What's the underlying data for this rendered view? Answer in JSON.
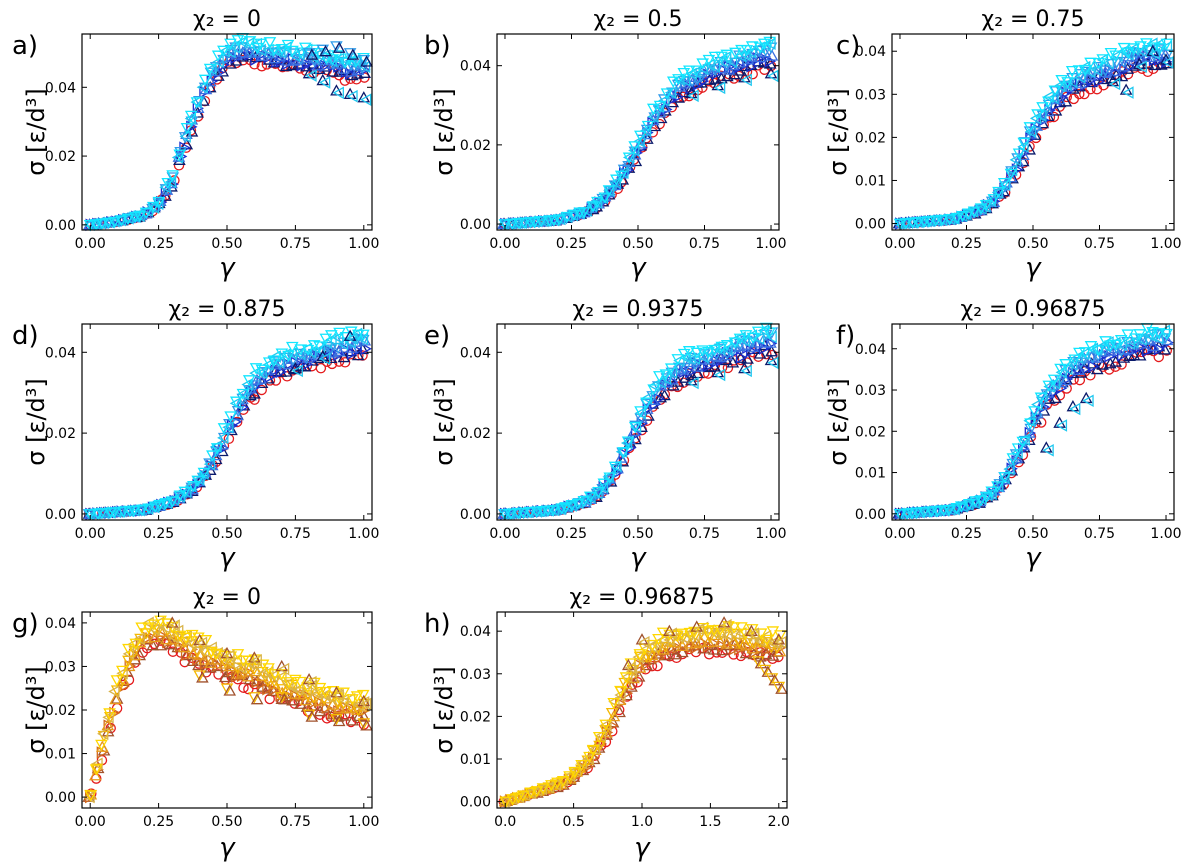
{
  "figure": {
    "xlabel": "γ",
    "ylabel": "σ [ε/d³]"
  },
  "chart_data": [
    {
      "panel": "a)",
      "title": "χ₂ = 0",
      "type": "scatter",
      "xlim": [
        -0.03,
        1.03
      ],
      "ylim": [
        -0.0015,
        0.0555
      ],
      "xticks": [
        "0.00",
        "0.25",
        "0.50",
        "0.75",
        "1.00"
      ],
      "xtickvals": [
        0,
        0.25,
        0.5,
        0.75,
        1.0
      ],
      "yticks": [
        "0.00",
        "0.02",
        "0.04"
      ],
      "ytickvals": [
        0,
        0.02,
        0.04
      ],
      "palette": "blue",
      "curve": {
        "x": [
          0,
          0.1,
          0.2,
          0.25,
          0.3,
          0.35,
          0.4,
          0.45,
          0.5,
          0.55,
          0.6,
          0.7,
          0.8,
          0.9,
          1.0
        ],
        "y": [
          0,
          0.001,
          0.003,
          0.006,
          0.013,
          0.025,
          0.036,
          0.044,
          0.049,
          0.051,
          0.05,
          0.049,
          0.048,
          0.046,
          0.045
        ]
      },
      "tails": [
        {
          "x": [
            0.8,
            0.85,
            0.9,
            0.95,
            1.0
          ],
          "y": [
            0.044,
            0.042,
            0.039,
            0.038,
            0.037
          ]
        },
        {
          "x": [
            0.8,
            0.85,
            0.9,
            0.95,
            1.0
          ],
          "y": [
            0.05,
            0.051,
            0.052,
            0.05,
            0.048
          ]
        }
      ]
    },
    {
      "panel": "b)",
      "title": "χ₂ = 0.5",
      "type": "scatter",
      "xlim": [
        -0.03,
        1.03
      ],
      "ylim": [
        -0.0015,
        0.048
      ],
      "xticks": [
        "0.00",
        "0.25",
        "0.50",
        "0.75",
        "1.00"
      ],
      "xtickvals": [
        0,
        0.25,
        0.5,
        0.75,
        1.0
      ],
      "yticks": [
        "0.00",
        "0.02",
        "0.04"
      ],
      "ytickvals": [
        0,
        0.02,
        0.04
      ],
      "palette": "blue",
      "curve": {
        "x": [
          0,
          0.1,
          0.2,
          0.3,
          0.35,
          0.4,
          0.45,
          0.5,
          0.55,
          0.6,
          0.65,
          0.7,
          0.8,
          0.9,
          1.0
        ],
        "y": [
          0,
          0.0005,
          0.001,
          0.003,
          0.005,
          0.008,
          0.013,
          0.019,
          0.025,
          0.03,
          0.034,
          0.036,
          0.039,
          0.041,
          0.043
        ]
      },
      "tails": [
        {
          "x": [
            0.7,
            0.8,
            0.9,
            1.0
          ],
          "y": [
            0.033,
            0.035,
            0.037,
            0.038
          ]
        }
      ]
    },
    {
      "panel": "c)",
      "title": "χ₂ = 0.75",
      "type": "scatter",
      "xlim": [
        -0.03,
        1.03
      ],
      "ylim": [
        -0.0015,
        0.044
      ],
      "xticks": [
        "0.00",
        "0.25",
        "0.50",
        "0.75",
        "1.00"
      ],
      "xtickvals": [
        0,
        0.25,
        0.5,
        0.75,
        1.0
      ],
      "yticks": [
        "0.00",
        "0.01",
        "0.02",
        "0.03",
        "0.04"
      ],
      "ytickvals": [
        0,
        0.01,
        0.02,
        0.03,
        0.04
      ],
      "palette": "blue",
      "curve": {
        "x": [
          0,
          0.1,
          0.2,
          0.3,
          0.35,
          0.4,
          0.45,
          0.5,
          0.55,
          0.6,
          0.65,
          0.7,
          0.8,
          0.9,
          1.0
        ],
        "y": [
          0,
          0.0005,
          0.001,
          0.003,
          0.005,
          0.009,
          0.015,
          0.021,
          0.026,
          0.03,
          0.032,
          0.034,
          0.036,
          0.039,
          0.039
        ]
      },
      "tails": [
        {
          "x": [
            0.8,
            0.85,
            0.9,
            0.95,
            1.0
          ],
          "y": [
            0.033,
            0.031,
            0.037,
            0.04,
            0.038
          ]
        }
      ]
    },
    {
      "panel": "d)",
      "title": "χ₂ = 0.875",
      "type": "scatter",
      "xlim": [
        -0.03,
        1.03
      ],
      "ylim": [
        -0.0015,
        0.047
      ],
      "xticks": [
        "0.00",
        "0.25",
        "0.50",
        "0.75",
        "1.00"
      ],
      "xtickvals": [
        0,
        0.25,
        0.5,
        0.75,
        1.0
      ],
      "yticks": [
        "0.00",
        "0.02",
        "0.04"
      ],
      "ytickvals": [
        0,
        0.02,
        0.04
      ],
      "palette": "blue",
      "curve": {
        "x": [
          0,
          0.1,
          0.2,
          0.3,
          0.35,
          0.4,
          0.45,
          0.5,
          0.55,
          0.6,
          0.65,
          0.7,
          0.8,
          0.9,
          1.0
        ],
        "y": [
          0,
          0.0005,
          0.001,
          0.003,
          0.005,
          0.008,
          0.013,
          0.02,
          0.027,
          0.032,
          0.035,
          0.037,
          0.039,
          0.041,
          0.042
        ]
      },
      "tails": [
        {
          "x": [
            0.75,
            0.85,
            0.95
          ],
          "y": [
            0.036,
            0.039,
            0.044
          ]
        }
      ]
    },
    {
      "panel": "e)",
      "title": "χ₂ = 0.9375",
      "type": "scatter",
      "xlim": [
        -0.03,
        1.03
      ],
      "ylim": [
        -0.0015,
        0.047
      ],
      "xticks": [
        "0.00",
        "0.25",
        "0.50",
        "0.75",
        "1.00"
      ],
      "xtickvals": [
        0,
        0.25,
        0.5,
        0.75,
        1.0
      ],
      "yticks": [
        "0.00",
        "0.02",
        "0.04"
      ],
      "ytickvals": [
        0,
        0.02,
        0.04
      ],
      "palette": "blue",
      "curve": {
        "x": [
          0,
          0.1,
          0.2,
          0.3,
          0.35,
          0.4,
          0.45,
          0.5,
          0.55,
          0.6,
          0.65,
          0.7,
          0.8,
          0.9,
          1.0
        ],
        "y": [
          0,
          0.0005,
          0.001,
          0.003,
          0.005,
          0.009,
          0.015,
          0.022,
          0.028,
          0.032,
          0.035,
          0.037,
          0.039,
          0.041,
          0.043
        ]
      },
      "tails": [
        {
          "x": [
            0.7,
            0.8,
            0.9,
            1.0
          ],
          "y": [
            0.033,
            0.035,
            0.036,
            0.038
          ]
        }
      ]
    },
    {
      "panel": "f)",
      "title": "χ₂ = 0.96875",
      "type": "scatter",
      "xlim": [
        -0.03,
        1.03
      ],
      "ylim": [
        -0.0015,
        0.046
      ],
      "xticks": [
        "0.00",
        "0.25",
        "0.50",
        "0.75",
        "1.00"
      ],
      "xtickvals": [
        0,
        0.25,
        0.5,
        0.75,
        1.0
      ],
      "yticks": [
        "0.00",
        "0.01",
        "0.02",
        "0.03",
        "0.04"
      ],
      "ytickvals": [
        0,
        0.01,
        0.02,
        0.03,
        0.04
      ],
      "palette": "blue",
      "curve": {
        "x": [
          0,
          0.1,
          0.2,
          0.3,
          0.35,
          0.4,
          0.45,
          0.5,
          0.55,
          0.6,
          0.65,
          0.7,
          0.8,
          0.9,
          1.0
        ],
        "y": [
          0,
          0.0005,
          0.001,
          0.003,
          0.005,
          0.009,
          0.015,
          0.022,
          0.028,
          0.032,
          0.035,
          0.037,
          0.039,
          0.041,
          0.042
        ]
      },
      "tails": [
        {
          "x": [
            0.55,
            0.6,
            0.65,
            0.7
          ],
          "y": [
            0.016,
            0.022,
            0.026,
            0.028
          ]
        }
      ]
    },
    {
      "panel": "g)",
      "title": "χ₂ = 0",
      "type": "scatter",
      "xlim": [
        -0.03,
        1.03
      ],
      "ylim": [
        -0.0025,
        0.0425
      ],
      "xticks": [
        "0.00",
        "0.25",
        "0.50",
        "0.75",
        "1.00"
      ],
      "xtickvals": [
        0,
        0.25,
        0.5,
        0.75,
        1.0
      ],
      "yticks": [
        "0.00",
        "0.01",
        "0.02",
        "0.03",
        "0.04"
      ],
      "ytickvals": [
        0,
        0.01,
        0.02,
        0.03,
        0.04
      ],
      "palette": "warm",
      "curve": {
        "x": [
          0,
          0.02,
          0.05,
          0.1,
          0.15,
          0.2,
          0.25,
          0.3,
          0.4,
          0.5,
          0.6,
          0.7,
          0.8,
          0.9,
          1.0
        ],
        "y": [
          0,
          0.005,
          0.013,
          0.024,
          0.032,
          0.037,
          0.038,
          0.036,
          0.033,
          0.03,
          0.028,
          0.025,
          0.023,
          0.021,
          0.02
        ]
      },
      "tails": [
        {
          "x": [
            0.3,
            0.4,
            0.5,
            0.6,
            0.7,
            0.8,
            0.9,
            1.0
          ],
          "y": [
            0.04,
            0.036,
            0.033,
            0.032,
            0.03,
            0.027,
            0.024,
            0.022
          ]
        },
        {
          "x": [
            0.4,
            0.5,
            0.6,
            0.7,
            0.8,
            0.9,
            1.0
          ],
          "y": [
            0.028,
            0.025,
            0.023,
            0.023,
            0.019,
            0.018,
            0.017
          ]
        }
      ]
    },
    {
      "panel": "h)",
      "title": "χ₂ = 0.96875",
      "type": "scatter",
      "xlim": [
        -0.06,
        2.06
      ],
      "ylim": [
        -0.0015,
        0.0445
      ],
      "xticks": [
        "0.0",
        "0.5",
        "1.0",
        "1.5",
        "2.0"
      ],
      "xtickvals": [
        0,
        0.5,
        1.0,
        1.5,
        2.0
      ],
      "yticks": [
        "0.00",
        "0.01",
        "0.02",
        "0.03",
        "0.04"
      ],
      "ytickvals": [
        0,
        0.01,
        0.02,
        0.03,
        0.04
      ],
      "palette": "warm",
      "curve": {
        "x": [
          0,
          0.2,
          0.4,
          0.5,
          0.6,
          0.7,
          0.8,
          0.9,
          1.0,
          1.2,
          1.4,
          1.6,
          1.8,
          2.0
        ],
        "y": [
          0,
          0.002,
          0.004,
          0.006,
          0.009,
          0.014,
          0.021,
          0.028,
          0.033,
          0.037,
          0.038,
          0.038,
          0.037,
          0.036
        ]
      },
      "tails": [
        {
          "x": [
            0.9,
            1.0,
            1.2,
            1.4,
            1.6,
            1.8,
            2.0
          ],
          "y": [
            0.032,
            0.038,
            0.04,
            0.041,
            0.042,
            0.04,
            0.038
          ]
        },
        {
          "x": [
            1.85,
            1.9,
            1.95,
            2.0
          ],
          "y": [
            0.033,
            0.031,
            0.029,
            0.027
          ]
        }
      ]
    }
  ]
}
